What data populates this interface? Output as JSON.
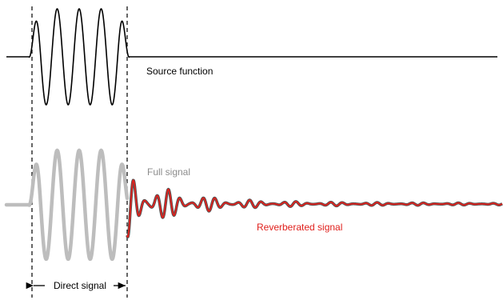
{
  "labels": {
    "source_function": "Source function",
    "full_signal": "Full signal",
    "reverberated_signal": "Reverberated signal",
    "direct_signal": "Direct signal"
  },
  "colors": {
    "source_trace": "#000000",
    "full_trace": "#bdbdbd",
    "full_label": "#8c8c8c",
    "reverberated_trace": "#e0201c",
    "reverberated_outline": "#555555",
    "dashed_guides": "#000000"
  }
}
